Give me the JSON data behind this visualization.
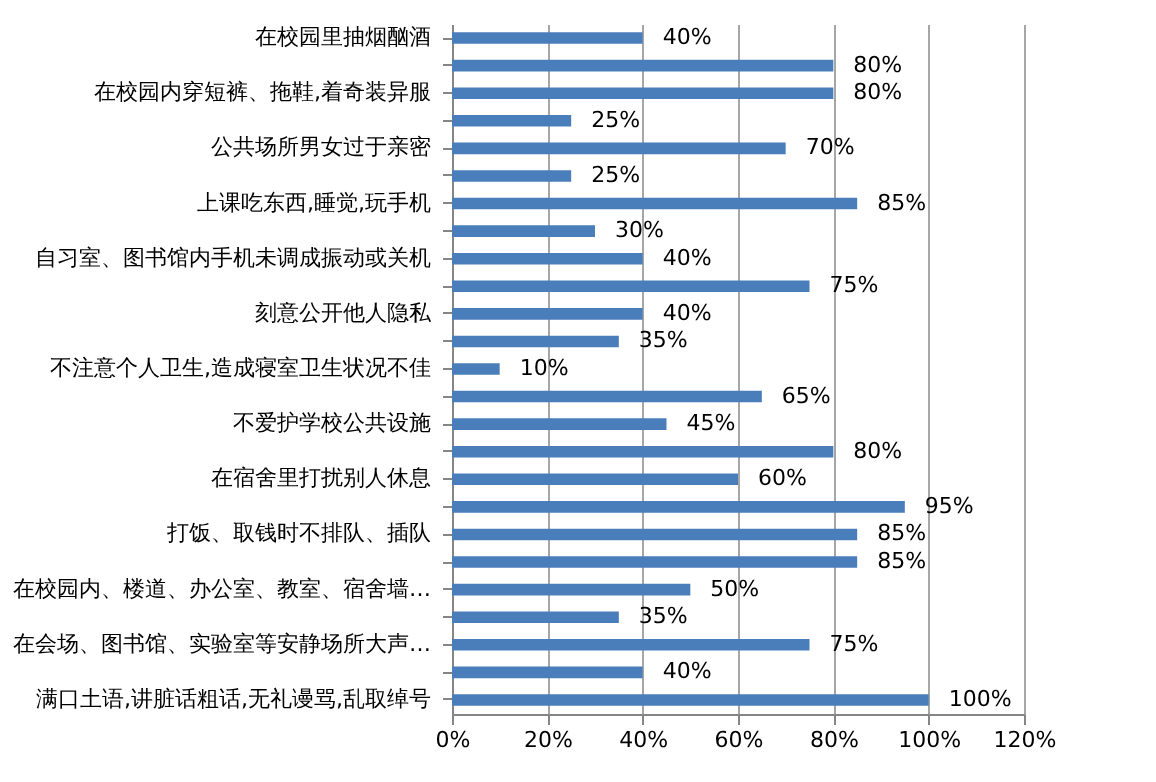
{
  "chart_data": {
    "type": "bar",
    "orientation": "horizontal",
    "categories": [
      "在校园里抽烟酗酒",
      null,
      "在校园内穿短裤、拖鞋,着奇装异服",
      null,
      "公共场所男女过于亲密",
      null,
      "上课吃东西,睡觉,玩手机",
      null,
      "自习室、图书馆内手机未调成振动或关机",
      null,
      "刻意公开他人隐私",
      null,
      "不注意个人卫生,造成寝室卫生状况不佳",
      null,
      "不爱护学校公共设施",
      null,
      "在宿舍里打扰别人休息",
      null,
      "打饭、取钱时不排队、插队",
      null,
      "在校园内、楼道、办公室、教室、宿舍墙…",
      null,
      "在会场、图书馆、实验室等安静场所大声…",
      null,
      "满口土语,讲脏话粗话,无礼谩骂,乱取绰号"
    ],
    "values": [
      40,
      80,
      80,
      25,
      70,
      25,
      85,
      30,
      40,
      75,
      40,
      35,
      10,
      65,
      45,
      80,
      60,
      95,
      85,
      85,
      50,
      35,
      75,
      40,
      100
    ],
    "value_labels": [
      "40%",
      "80%",
      "80%",
      "25%",
      "70%",
      "25%",
      "85%",
      "30%",
      "40%",
      "75%",
      "40%",
      "35%",
      "10%",
      "65%",
      "45%",
      "80%",
      "60%",
      "95%",
      "85%",
      "85%",
      "50%",
      "35%",
      "75%",
      "40%",
      "100%"
    ],
    "color": "#4a7ebb",
    "xlim": [
      0,
      120
    ],
    "xticks": [
      {
        "value": 0,
        "label": "0%"
      },
      {
        "value": 20,
        "label": "20%"
      },
      {
        "value": 40,
        "label": "40%"
      },
      {
        "value": 60,
        "label": "60%"
      },
      {
        "value": 80,
        "label": "80%"
      },
      {
        "value": 100,
        "label": "100%"
      },
      {
        "value": 120,
        "label": "120%"
      }
    ],
    "grid": "x"
  }
}
